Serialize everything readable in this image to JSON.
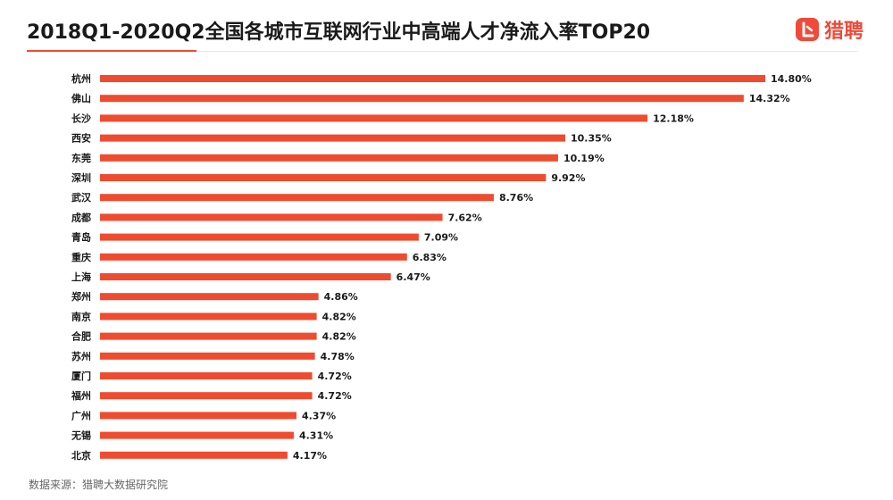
{
  "header": {
    "title": "2018Q1-2020Q2全国各城市互联网行业中高端人才净流入率TOP20"
  },
  "logo": {
    "icon": "liepin-logo-icon",
    "text": "猎聘",
    "color": "#f04a3a"
  },
  "source": "数据来源：猎聘大数据研究院",
  "colors": {
    "bar": "#ef4b2f",
    "accent": "#ef4b2f",
    "label": "#1a1a1a"
  },
  "chart_data": {
    "type": "bar",
    "orientation": "horizontal",
    "categories": [
      "杭州",
      "佛山",
      "长沙",
      "西安",
      "东莞",
      "深圳",
      "武汉",
      "成都",
      "青岛",
      "重庆",
      "上海",
      "郑州",
      "南京",
      "合肥",
      "苏州",
      "厦门",
      "福州",
      "广州",
      "无锡",
      "北京"
    ],
    "values": [
      14.8,
      14.32,
      12.18,
      10.35,
      10.19,
      9.92,
      8.76,
      7.62,
      7.09,
      6.83,
      6.47,
      4.86,
      4.82,
      4.82,
      4.78,
      4.72,
      4.72,
      4.37,
      4.31,
      4.17
    ],
    "labels": [
      "14.80%",
      "14.32%",
      "12.18%",
      "10.35%",
      "10.19%",
      "9.92%",
      "8.76%",
      "7.62%",
      "7.09%",
      "6.83%",
      "6.47%",
      "4.86%",
      "4.82%",
      "4.82%",
      "4.78%",
      "4.72%",
      "4.72%",
      "4.37%",
      "4.31%",
      "4.17%"
    ],
    "title": "2018Q1-2020Q2全国各城市互联网行业中高端人才净流入率TOP20",
    "xlabel": "",
    "ylabel": "",
    "xlim": [
      0,
      14.8
    ],
    "grid": false,
    "legend": "none"
  }
}
